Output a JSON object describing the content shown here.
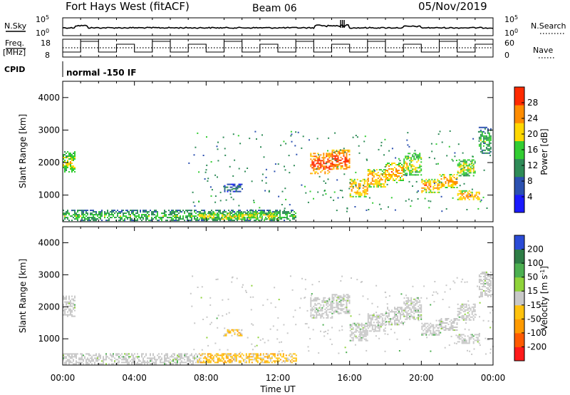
{
  "header": {
    "title": "Fort Hays West (fitACF)",
    "beam": "Beam 06",
    "date": "05/Nov/2019"
  },
  "noise_panel": {
    "left_label": "N.Sky",
    "right_label": "N.Search",
    "left_ticks": [
      "10^5",
      "10^0"
    ],
    "right_ticks": [
      "10^5",
      "10^0"
    ]
  },
  "freq_panel": {
    "left_label_line1": "Freq.",
    "left_label_line2": "[MHz]",
    "left_ticks": [
      "18",
      "8"
    ],
    "right_label": "Nave",
    "right_ticks": [
      "60",
      "0"
    ]
  },
  "cpid_panel": {
    "label": "CPID",
    "text": "normal -150 IF"
  },
  "chart_data": [
    {
      "type": "heatmap",
      "title": "",
      "ylabel": "Slant Range [km]",
      "xlabel": "",
      "ylim": [
        180,
        4500
      ],
      "yticks": [
        "1000",
        "2000",
        "3000",
        "4000"
      ],
      "colorbar": {
        "label": "Power [dB]",
        "ticks": [
          "4",
          "8",
          "12",
          "16",
          "20",
          "24",
          "28"
        ],
        "colors": [
          "#1a1aff",
          "#2b50b0",
          "#2e8b57",
          "#32cd32",
          "#ffd700",
          "#ff8c00",
          "#ff2a00"
        ]
      },
      "echo_regions": [
        {
          "t0": 0.0,
          "t1": 0.7,
          "r0": 1700,
          "r1": 2350,
          "level": 3
        },
        {
          "t0": 0.0,
          "t1": 13.0,
          "r0": 200,
          "r1": 550,
          "level": 2
        },
        {
          "t0": 7.5,
          "t1": 12.0,
          "r0": 250,
          "r1": 500,
          "level": 3
        },
        {
          "t0": 9.0,
          "t1": 10.0,
          "r0": 1100,
          "r1": 1350,
          "level": 1
        },
        {
          "t0": 13.8,
          "t1": 15.0,
          "r0": 1650,
          "r1": 2300,
          "level": 5
        },
        {
          "t0": 15.0,
          "t1": 16.0,
          "r0": 1800,
          "r1": 2400,
          "level": 5
        },
        {
          "t0": 16.0,
          "t1": 17.0,
          "r0": 950,
          "r1": 1500,
          "level": 4
        },
        {
          "t0": 17.0,
          "t1": 18.0,
          "r0": 1250,
          "r1": 1800,
          "level": 4
        },
        {
          "t0": 18.0,
          "t1": 19.0,
          "r0": 1450,
          "r1": 2000,
          "level": 4
        },
        {
          "t0": 19.0,
          "t1": 20.0,
          "r0": 1600,
          "r1": 2300,
          "level": 3
        },
        {
          "t0": 20.0,
          "t1": 21.0,
          "r0": 1100,
          "r1": 1500,
          "level": 4
        },
        {
          "t0": 21.0,
          "t1": 22.0,
          "r0": 1250,
          "r1": 1650,
          "level": 4
        },
        {
          "t0": 22.0,
          "t1": 23.0,
          "r0": 1600,
          "r1": 2100,
          "level": 3
        },
        {
          "t0": 22.0,
          "t1": 23.2,
          "r0": 850,
          "r1": 1150,
          "level": 4
        },
        {
          "t0": 23.2,
          "t1": 23.9,
          "r0": 2300,
          "r1": 3100,
          "level": 2
        }
      ]
    },
    {
      "type": "heatmap",
      "title": "",
      "ylabel": "Slant Range [km]",
      "xlabel": "Time UT",
      "ylim": [
        180,
        4500
      ],
      "yticks": [
        "1000",
        "2000",
        "3000",
        "4000"
      ],
      "xticks": [
        "00:00",
        "04:00",
        "08:00",
        "12:00",
        "16:00",
        "20:00",
        "00:00"
      ],
      "colorbar": {
        "label": "Velocity [m s^-1]",
        "ticks": [
          "200",
          "100",
          "50",
          "15",
          "-15",
          "-50",
          "-100",
          "-200"
        ],
        "colors": [
          "#2b4bd6",
          "#2e7d46",
          "#4caf50",
          "#8fd33a",
          "#c8c8c8",
          "#ffc20e",
          "#ff9a00",
          "#ff5a00",
          "#ff1a1a"
        ]
      },
      "echo_regions": [
        {
          "t0": 0.0,
          "t1": 0.7,
          "r0": 1700,
          "r1": 2350,
          "class": "gray"
        },
        {
          "t0": 0.0,
          "t1": 7.5,
          "r0": 200,
          "r1": 550,
          "class": "gray"
        },
        {
          "t0": 7.5,
          "t1": 13.0,
          "r0": 250,
          "r1": 550,
          "class": "orange"
        },
        {
          "t0": 9.0,
          "t1": 10.0,
          "r0": 1100,
          "r1": 1300,
          "class": "orange"
        },
        {
          "t0": 13.8,
          "t1": 15.0,
          "r0": 1650,
          "r1": 2300,
          "class": "gray"
        },
        {
          "t0": 15.0,
          "t1": 16.0,
          "r0": 1800,
          "r1": 2400,
          "class": "gray"
        },
        {
          "t0": 16.0,
          "t1": 17.0,
          "r0": 950,
          "r1": 1500,
          "class": "gray"
        },
        {
          "t0": 17.0,
          "t1": 18.0,
          "r0": 1250,
          "r1": 1800,
          "class": "gray"
        },
        {
          "t0": 18.0,
          "t1": 19.0,
          "r0": 1450,
          "r1": 2000,
          "class": "gray"
        },
        {
          "t0": 19.0,
          "t1": 20.0,
          "r0": 1600,
          "r1": 2300,
          "class": "gray"
        },
        {
          "t0": 20.0,
          "t1": 21.0,
          "r0": 1100,
          "r1": 1500,
          "class": "gray"
        },
        {
          "t0": 21.0,
          "t1": 22.0,
          "r0": 1250,
          "r1": 1650,
          "class": "gray"
        },
        {
          "t0": 22.0,
          "t1": 23.0,
          "r0": 1600,
          "r1": 2100,
          "class": "gray"
        },
        {
          "t0": 22.0,
          "t1": 23.2,
          "r0": 850,
          "r1": 1150,
          "class": "gray"
        },
        {
          "t0": 23.2,
          "t1": 23.9,
          "r0": 2300,
          "r1": 3100,
          "class": "gray"
        }
      ]
    }
  ]
}
